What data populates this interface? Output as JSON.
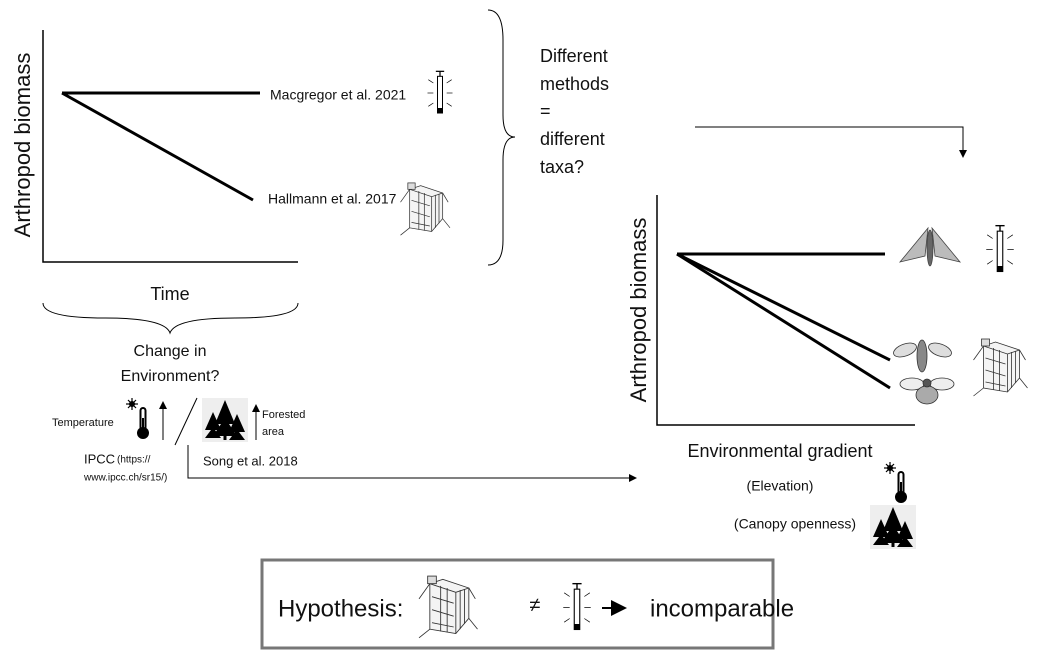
{
  "left_panel": {
    "y_label": "Arthropod biomass",
    "x_label": "Time",
    "lines": [
      {
        "label": "Macgregor et al. 2021"
      },
      {
        "label": "Hallmann et al. 2017"
      }
    ]
  },
  "question": [
    "Different",
    "methods",
    "=",
    "different",
    "taxa?"
  ],
  "environment": {
    "title_lines": [
      "Change in",
      "Environment?"
    ],
    "temperature": "Temperature",
    "forested": [
      "Forested",
      "area"
    ],
    "ipcc": "IPCC",
    "ipcc_url": [
      "(https://",
      "www.ipcc.ch/sr15/)"
    ],
    "song": "Song et al. 2018"
  },
  "right_panel": {
    "y_label": "Arthropod biomass",
    "x_label": "Environmental gradient",
    "elevation": "(Elevation)",
    "canopy": "(Canopy openness)"
  },
  "hypothesis": {
    "label": "Hypothesis:",
    "symbol": "≠",
    "result": "incomparable"
  }
}
